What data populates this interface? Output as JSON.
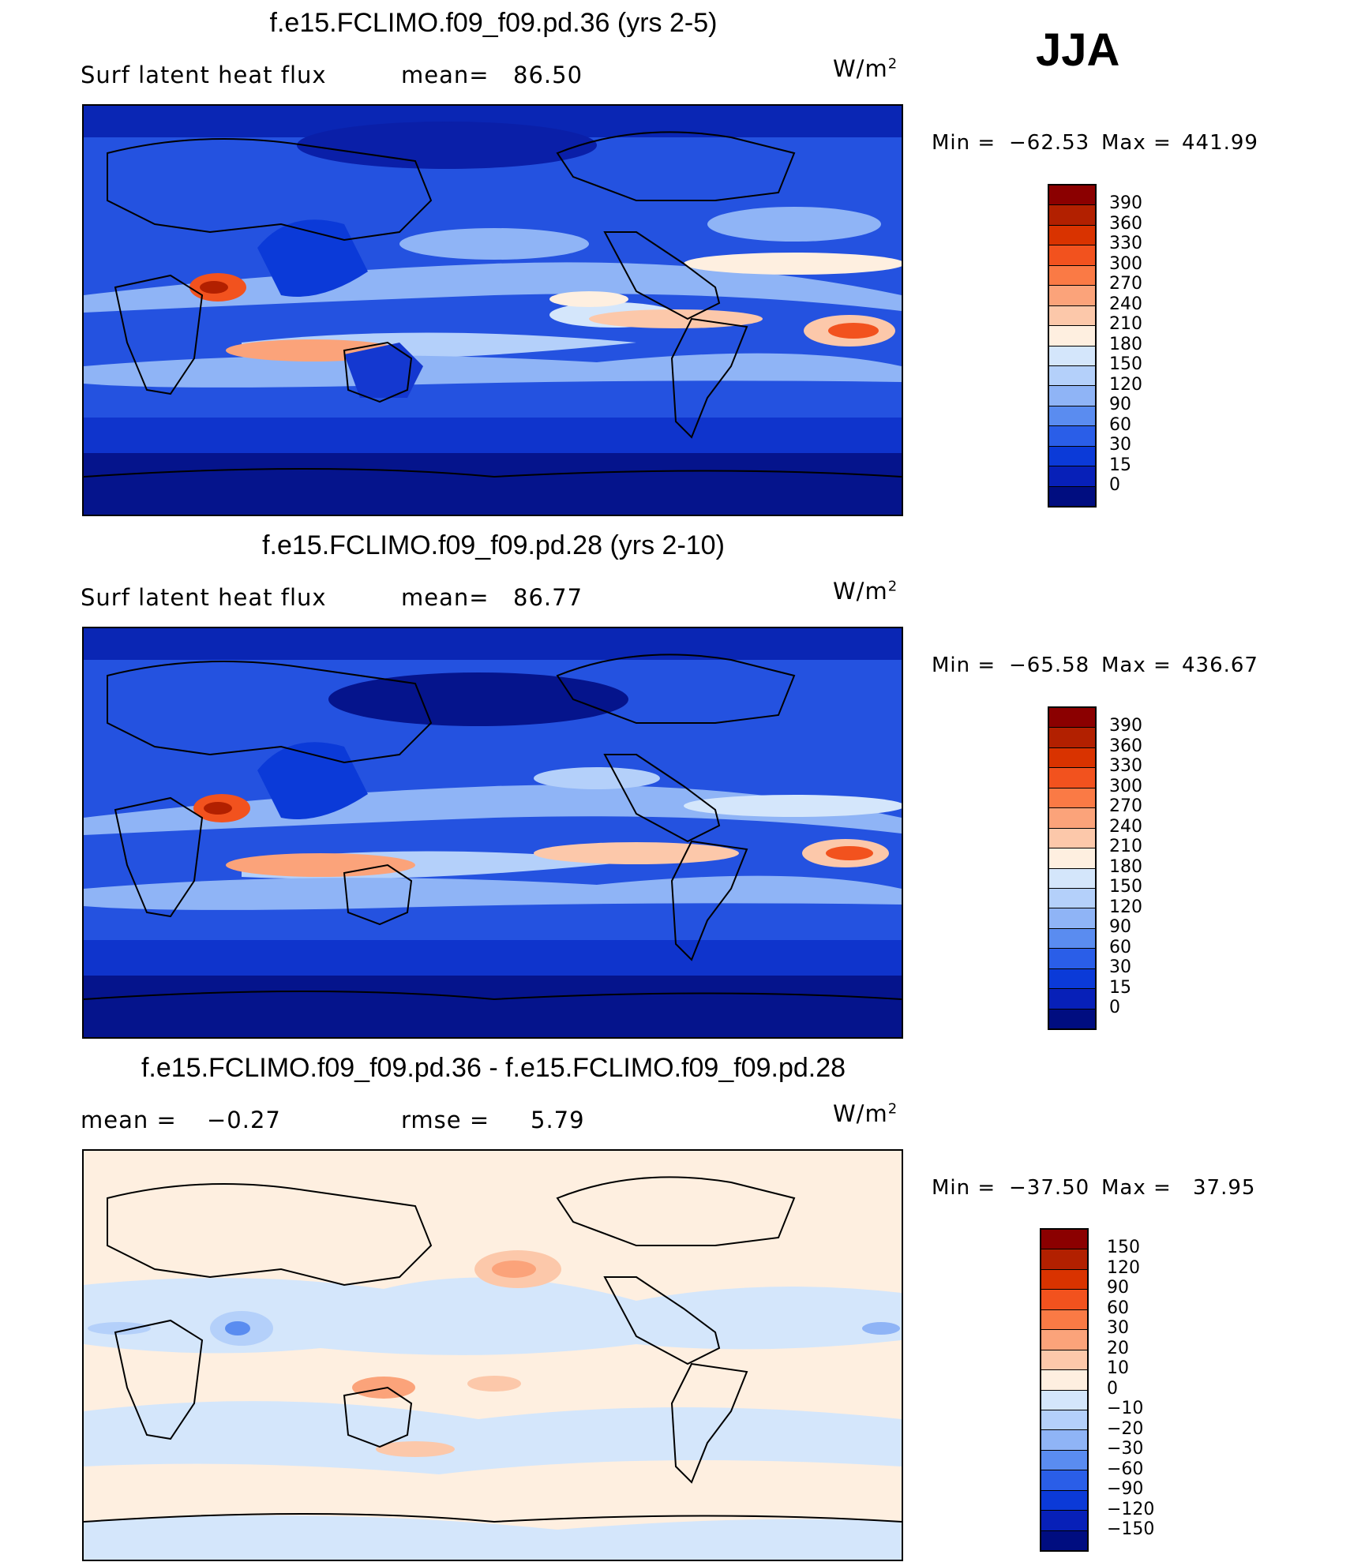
{
  "season": "JJA",
  "panels": [
    {
      "title": "f.e15.FCLIMO.f09_f09.pd.36 (yrs 2-5)",
      "left_label": "Surf  latent  heat  flux",
      "stat_label": "mean=",
      "stat_value": "86.50",
      "units_base": "W/m",
      "units_exp": "2",
      "min_label": "Min  =",
      "min_value": "−62.53",
      "max_label": "Max  =",
      "max_value": "441.99",
      "levels": [
        "390",
        "360",
        "330",
        "300",
        "270",
        "240",
        "210",
        "180",
        "150",
        "120",
        "90",
        "60",
        "30",
        "15",
        "0"
      ],
      "colors": [
        "#8b0000",
        "#b22000",
        "#d93300",
        "#f2521e",
        "#fa7a45",
        "#fba37a",
        "#fcc8aa",
        "#feefe0",
        "#d4e6fb",
        "#b4d0fa",
        "#8fb4f6",
        "#5a8cf0",
        "#2a5ee8",
        "#0b3ad8",
        "#0720b8",
        "#000d80"
      ]
    },
    {
      "title": "f.e15.FCLIMO.f09_f09.pd.28 (yrs 2-10)",
      "left_label": "Surf  latent  heat  flux",
      "stat_label": "mean=",
      "stat_value": "86.77",
      "units_base": "W/m",
      "units_exp": "2",
      "min_label": "Min  =",
      "min_value": "−65.58",
      "max_label": "Max  =",
      "max_value": "436.67",
      "levels": [
        "390",
        "360",
        "330",
        "300",
        "270",
        "240",
        "210",
        "180",
        "150",
        "120",
        "90",
        "60",
        "30",
        "15",
        "0"
      ],
      "colors": [
        "#8b0000",
        "#b22000",
        "#d93300",
        "#f2521e",
        "#fa7a45",
        "#fba37a",
        "#fcc8aa",
        "#feefe0",
        "#d4e6fb",
        "#b4d0fa",
        "#8fb4f6",
        "#5a8cf0",
        "#2a5ee8",
        "#0b3ad8",
        "#0720b8",
        "#000d80"
      ]
    },
    {
      "title": "f.e15.FCLIMO.f09_f09.pd.36 - f.e15.FCLIMO.f09_f09.pd.28",
      "left_label": "mean  =",
      "left_value": "−0.27",
      "stat_label": "rmse  =",
      "stat_value": "5.79",
      "units_base": "W/m",
      "units_exp": "2",
      "min_label": "Min  =",
      "min_value": "−37.50",
      "max_label": "Max  =",
      "max_value": "37.95",
      "levels": [
        "150",
        "120",
        "90",
        "60",
        "30",
        "20",
        "10",
        "0",
        "−10",
        "−20",
        "−30",
        "−60",
        "−90",
        "−120",
        "−150"
      ],
      "colors": [
        "#8b0000",
        "#b22000",
        "#d93300",
        "#f2521e",
        "#fa7a45",
        "#fba37a",
        "#fcc8aa",
        "#feefe0",
        "#d4e6fb",
        "#b4d0fa",
        "#8fb4f6",
        "#5a8cf0",
        "#2a5ee8",
        "#0b3ad8",
        "#0720b8",
        "#000d80"
      ]
    }
  ]
}
